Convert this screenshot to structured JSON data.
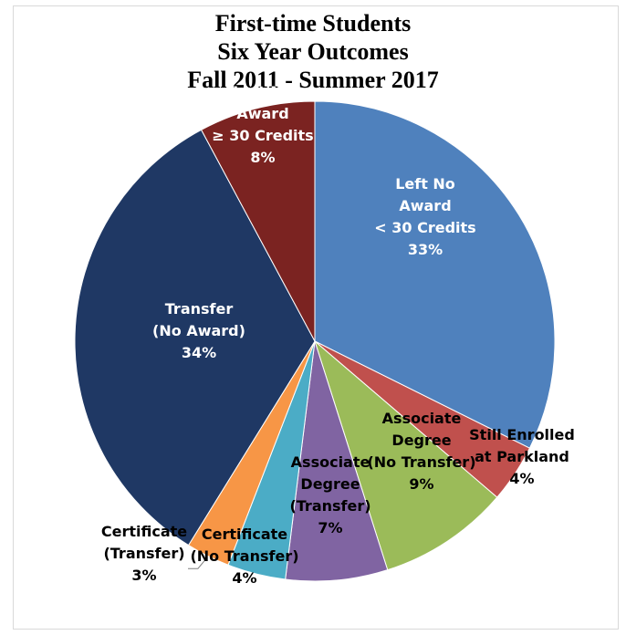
{
  "chart_data": {
    "type": "pie",
    "title": [
      "First-time Students",
      "Six Year Outcomes",
      "Fall 2011 - Summer 2017"
    ],
    "slices": [
      {
        "lines": [
          "Left No",
          "Award",
          "< 30 Credits",
          "33%"
        ],
        "value": 33,
        "color": "#4f81bd",
        "label_color": "#ffffff"
      },
      {
        "lines": [
          "Still Enrolled",
          "at Parkland",
          "4%"
        ],
        "value": 4,
        "color": "#c0504d",
        "label_color": "#000000"
      },
      {
        "lines": [
          "Associate",
          "Degree",
          "(No Transfer)",
          "9%"
        ],
        "value": 9,
        "color": "#9bbb59",
        "label_color": "#000000"
      },
      {
        "lines": [
          "Associate",
          "Degree",
          "(Transfer)",
          "7%"
        ],
        "value": 7,
        "color": "#8064a2",
        "label_color": "#000000"
      },
      {
        "lines": [
          "Certificate",
          "(No Transfer)",
          "4%"
        ],
        "value": 4,
        "color": "#4bacc6",
        "label_color": "#000000"
      },
      {
        "lines": [
          "Certificate",
          "(Transfer)",
          "3%"
        ],
        "value": 3,
        "color": "#f79646",
        "label_color": "#000000"
      },
      {
        "lines": [
          "Transfer",
          "(No Award)",
          "34%"
        ],
        "value": 34,
        "color": "#1f3864",
        "label_color": "#ffffff"
      },
      {
        "lines": [
          "Left No",
          "Award",
          "≥ 30 Credits",
          "8%"
        ],
        "value": 8,
        "color": "#7b2321",
        "label_color": "#ffffff"
      }
    ]
  }
}
